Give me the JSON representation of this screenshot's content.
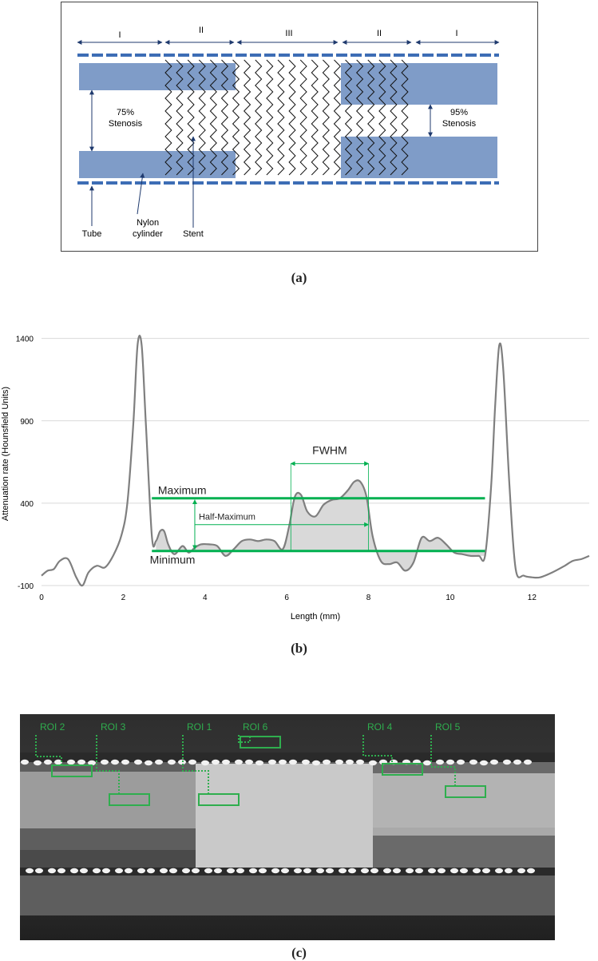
{
  "panel_a": {
    "zones": [
      "I",
      "II",
      "III",
      "II",
      "I"
    ],
    "left_label": [
      "75%",
      "Stenosis"
    ],
    "right_label": [
      "95%",
      "Stenosis"
    ],
    "tube_label": "Tube",
    "nylon_label": [
      "Nylon",
      "cylinder"
    ],
    "stent_label": "Stent",
    "colors": {
      "cylinder": "#7f9cc8",
      "tube": "#3d6db5",
      "arrow": "#1f3a6e"
    }
  },
  "caption_a": "(a)",
  "chart_data": {
    "type": "line",
    "title": "",
    "xlabel": "Length (mm)",
    "ylabel": "Attenuation rate (Hounsfield Units)",
    "xlim": [
      0,
      13.4
    ],
    "ylim": [
      -100,
      1500
    ],
    "xticks": [
      0,
      2,
      4,
      6,
      8,
      10,
      12
    ],
    "yticks": [
      -100,
      400,
      900,
      1400
    ],
    "grid": "horizontal",
    "series": [
      {
        "color": "#7f7f7f",
        "x": [
          0,
          0.15,
          0.3,
          0.45,
          0.65,
          0.85,
          1.0,
          1.15,
          1.35,
          1.55,
          1.75,
          1.95,
          2.1,
          2.25,
          2.35,
          2.45,
          2.55,
          2.7,
          2.8,
          2.9,
          3.0,
          3.1,
          3.25,
          3.45,
          3.6,
          3.75,
          3.9,
          4.1,
          4.3,
          4.5,
          4.7,
          4.9,
          5.1,
          5.3,
          5.5,
          5.7,
          5.9,
          6.05,
          6.2,
          6.35,
          6.5,
          6.7,
          6.9,
          7.1,
          7.3,
          7.5,
          7.65,
          7.8,
          7.95,
          8.1,
          8.3,
          8.5,
          8.7,
          8.9,
          9.1,
          9.3,
          9.5,
          9.7,
          9.9,
          10.1,
          10.3,
          10.5,
          10.7,
          10.85,
          11.0,
          11.1,
          11.2,
          11.3,
          11.45,
          11.6,
          11.8,
          12.0,
          12.2,
          12.5,
          12.8,
          13.0,
          13.2,
          13.4
        ],
        "y": [
          -40,
          -10,
          0,
          50,
          60,
          -50,
          -100,
          -20,
          20,
          10,
          80,
          200,
          400,
          900,
          1360,
          1360,
          900,
          200,
          170,
          230,
          230,
          150,
          90,
          140,
          100,
          130,
          150,
          150,
          140,
          80,
          120,
          170,
          180,
          170,
          180,
          170,
          120,
          250,
          440,
          450,
          350,
          320,
          390,
          420,
          430,
          480,
          530,
          530,
          440,
          200,
          50,
          30,
          40,
          -10,
          40,
          190,
          170,
          190,
          150,
          100,
          90,
          80,
          80,
          80,
          500,
          1000,
          1360,
          1200,
          500,
          0,
          -40,
          -50,
          -50,
          -20,
          20,
          50,
          60,
          80
        ]
      }
    ],
    "levels": {
      "maximum": 430,
      "minimum": 110,
      "half_maximum": 270
    },
    "fwhm": {
      "x_start": 6.1,
      "x_end": 8.0,
      "y": 640
    },
    "level_arrow_x": 3.75,
    "half_arrow_y": 270,
    "annotations": {
      "maximum": "Maximum",
      "minimum": "Minimum",
      "half_maximum": "Half-Maximum",
      "fwhm": "FWHM"
    },
    "annotation_color": "#00b050"
  },
  "caption_b": "(b)",
  "panel_c": {
    "rois": [
      "ROI 2",
      "ROI 3",
      "ROI 1",
      "ROI 6",
      "ROI 4",
      "ROI 5"
    ],
    "colors": {
      "roi": "#2fae4e"
    }
  },
  "caption_c": "(c)"
}
